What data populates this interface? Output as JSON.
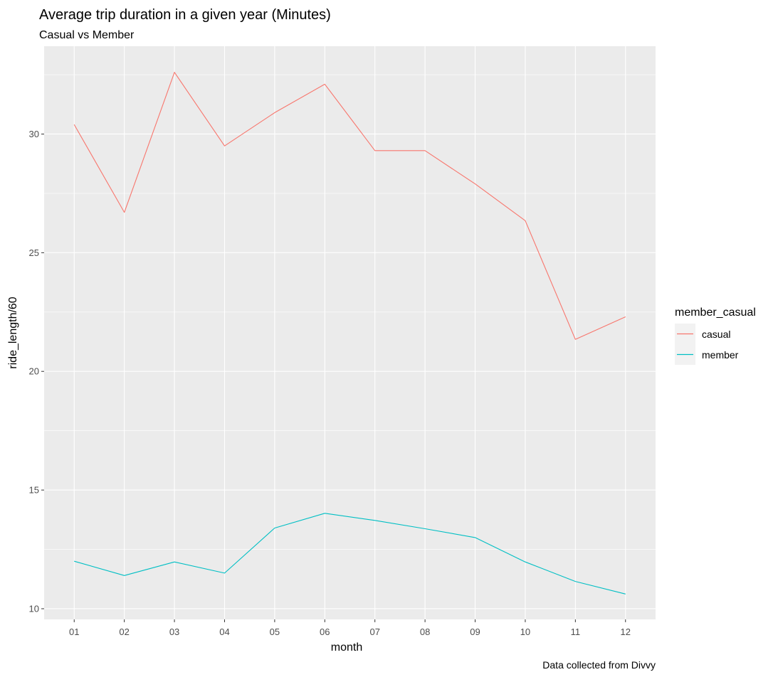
{
  "chart_data": {
    "type": "line",
    "title": "Average trip duration in a given year (Minutes)",
    "subtitle": "Casual vs Member",
    "xlabel": "month",
    "ylabel": "ride_length/60",
    "caption": "Data collected from Divvy",
    "categories": [
      "01",
      "02",
      "03",
      "04",
      "05",
      "06",
      "07",
      "08",
      "09",
      "10",
      "11",
      "12"
    ],
    "y_ticks": [
      10,
      15,
      20,
      25,
      30
    ],
    "ylim": [
      9.55,
      33.7
    ],
    "grid": true,
    "legend": {
      "title": "member_casual",
      "position": "right"
    },
    "series": [
      {
        "name": "casual",
        "color": "#F8766D",
        "values": [
          30.4,
          26.7,
          32.6,
          29.5,
          30.9,
          32.1,
          29.3,
          29.3,
          27.9,
          26.35,
          21.35,
          22.3
        ]
      },
      {
        "name": "member",
        "color": "#00BFC4",
        "values": [
          12.0,
          11.4,
          11.97,
          11.5,
          13.4,
          14.02,
          13.72,
          13.37,
          13.0,
          11.97,
          11.15,
          10.62
        ]
      }
    ]
  }
}
